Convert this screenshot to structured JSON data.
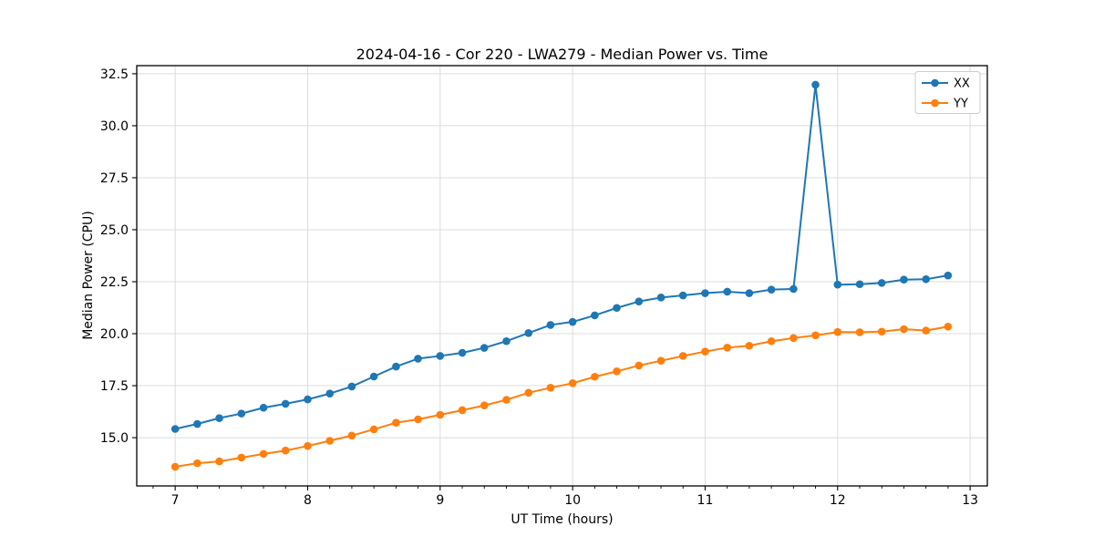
{
  "chart_data": {
    "type": "line",
    "title": "2024-04-16 - Cor 220 - LWA279 - Median Power vs. Time",
    "xlabel": "UT Time (hours)",
    "ylabel": "Median Power (CPU)",
    "xlim": [
      6.71,
      13.13
    ],
    "ylim": [
      12.68,
      32.89
    ],
    "xticks": [
      7,
      8,
      9,
      10,
      11,
      12,
      13
    ],
    "x_minor_step": 0.1666667,
    "yticks": [
      15.0,
      17.5,
      20.0,
      22.5,
      25.0,
      27.5,
      30.0,
      32.5
    ],
    "grid": true,
    "legend_position": "upper right",
    "x": [
      7.0,
      7.167,
      7.333,
      7.5,
      7.667,
      7.833,
      8.0,
      8.167,
      8.333,
      8.5,
      8.667,
      8.833,
      9.0,
      9.167,
      9.333,
      9.5,
      9.667,
      9.833,
      10.0,
      10.167,
      10.333,
      10.5,
      10.667,
      10.833,
      11.0,
      11.167,
      11.333,
      11.5,
      11.667,
      11.833,
      12.0,
      12.167,
      12.333,
      12.5,
      12.667,
      12.833
    ],
    "series": [
      {
        "name": "XX",
        "color": "#1f77b4",
        "values": [
          15.42,
          15.66,
          15.94,
          16.16,
          16.44,
          16.63,
          16.84,
          17.12,
          17.46,
          17.94,
          18.42,
          18.8,
          18.93,
          19.08,
          19.32,
          19.64,
          20.03,
          20.42,
          20.57,
          20.88,
          21.24,
          21.55,
          21.74,
          21.84,
          21.95,
          22.02,
          21.95,
          22.12,
          22.15,
          31.97,
          22.36,
          22.38,
          22.44,
          22.6,
          22.62,
          22.8
        ]
      },
      {
        "name": "YY",
        "color": "#ff7f0e",
        "values": [
          13.6,
          13.77,
          13.86,
          14.04,
          14.22,
          14.38,
          14.6,
          14.85,
          15.1,
          15.4,
          15.72,
          15.88,
          16.1,
          16.32,
          16.55,
          16.82,
          17.16,
          17.4,
          17.62,
          17.93,
          18.19,
          18.47,
          18.7,
          18.93,
          19.14,
          19.33,
          19.42,
          19.64,
          19.79,
          19.92,
          20.08,
          20.07,
          20.1,
          20.22,
          20.15,
          20.34
        ]
      }
    ],
    "colors": {
      "grid": "#dcdcdc",
      "axis": "#000000",
      "background": "#ffffff",
      "legend_border": "#cccccc"
    }
  }
}
